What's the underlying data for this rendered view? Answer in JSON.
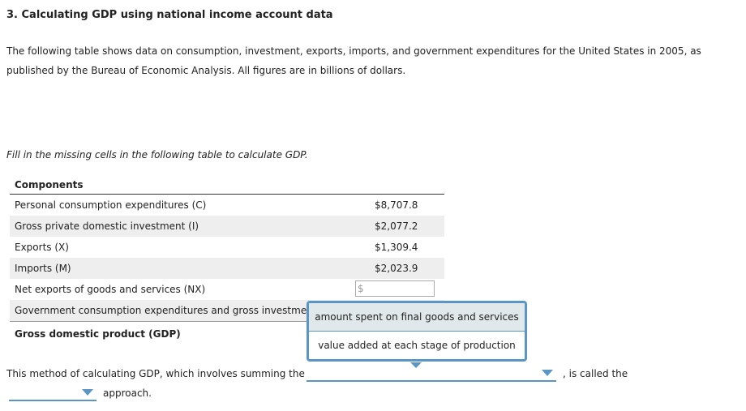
{
  "title": "3. Calculating GDP using national income account data",
  "intro": "The following table shows data on consumption, investment, exports, imports, and government expenditures for the United States in 2005, as published by the Bureau of Economic Analysis. All figures are in billions of dollars.",
  "instruction": "Fill in the missing cells in the following table to calculate GDP.",
  "table": {
    "header": "Components",
    "rows": [
      {
        "label": "Personal consumption expenditures (C)",
        "value": "$8,707.8"
      },
      {
        "label": "Gross private domestic investment (I)",
        "value": "$2,077.2"
      },
      {
        "label": "Exports (X)",
        "value": "$1,309.4"
      },
      {
        "label": "Imports (M)",
        "value": "$2,023.9"
      },
      {
        "label": "Net exports of goods and services (NX)",
        "input_prefix": "$",
        "input_value": ""
      },
      {
        "label": "Government consumption expenditures and gross investme"
      }
    ],
    "total_label": "Gross domestic product (GDP)"
  },
  "dropdown_options": [
    "amount spent on final goods and services",
    "value added at each stage of production"
  ],
  "highlighted_option": 0,
  "sentence": {
    "part1": "This method of calculating GDP, which involves summing the",
    "part2": ", is called the",
    "part3": "approach.",
    "dropdown1_value": "",
    "dropdown2_value": ""
  },
  "colors": {
    "accent": "#5b95c4",
    "highlight": "#e1e8ec",
    "row_alt": "#eeeeee"
  }
}
